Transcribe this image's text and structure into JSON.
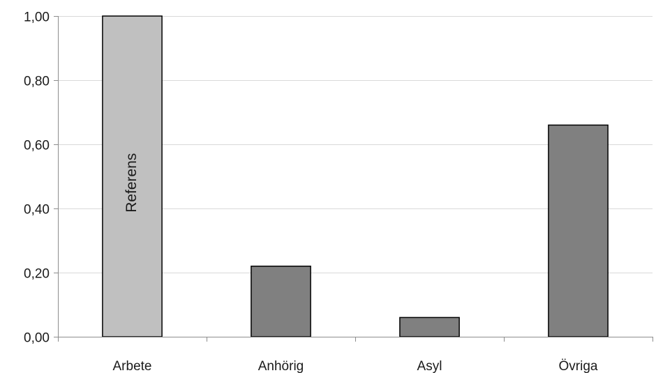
{
  "chart_data": {
    "type": "bar",
    "categories": [
      "Arbete",
      "Anhörig",
      "Asyl",
      "Övriga"
    ],
    "values": [
      1.0,
      0.22,
      0.06,
      0.66
    ],
    "bar_colors": [
      "#c0c0c0",
      "#808080",
      "#808080",
      "#808080"
    ],
    "bar_annotations": [
      {
        "category": "Arbete",
        "text": "Referens"
      }
    ],
    "ylim": [
      0,
      1.0
    ],
    "yticks": [
      0.0,
      0.2,
      0.4,
      0.6,
      0.8,
      1.0
    ],
    "ytick_labels": [
      "0,00",
      "0,20",
      "0,40",
      "0,60",
      "0,80",
      "1,00"
    ],
    "grid": true,
    "legend": "none",
    "title": "",
    "xlabel": "",
    "ylabel": ""
  }
}
